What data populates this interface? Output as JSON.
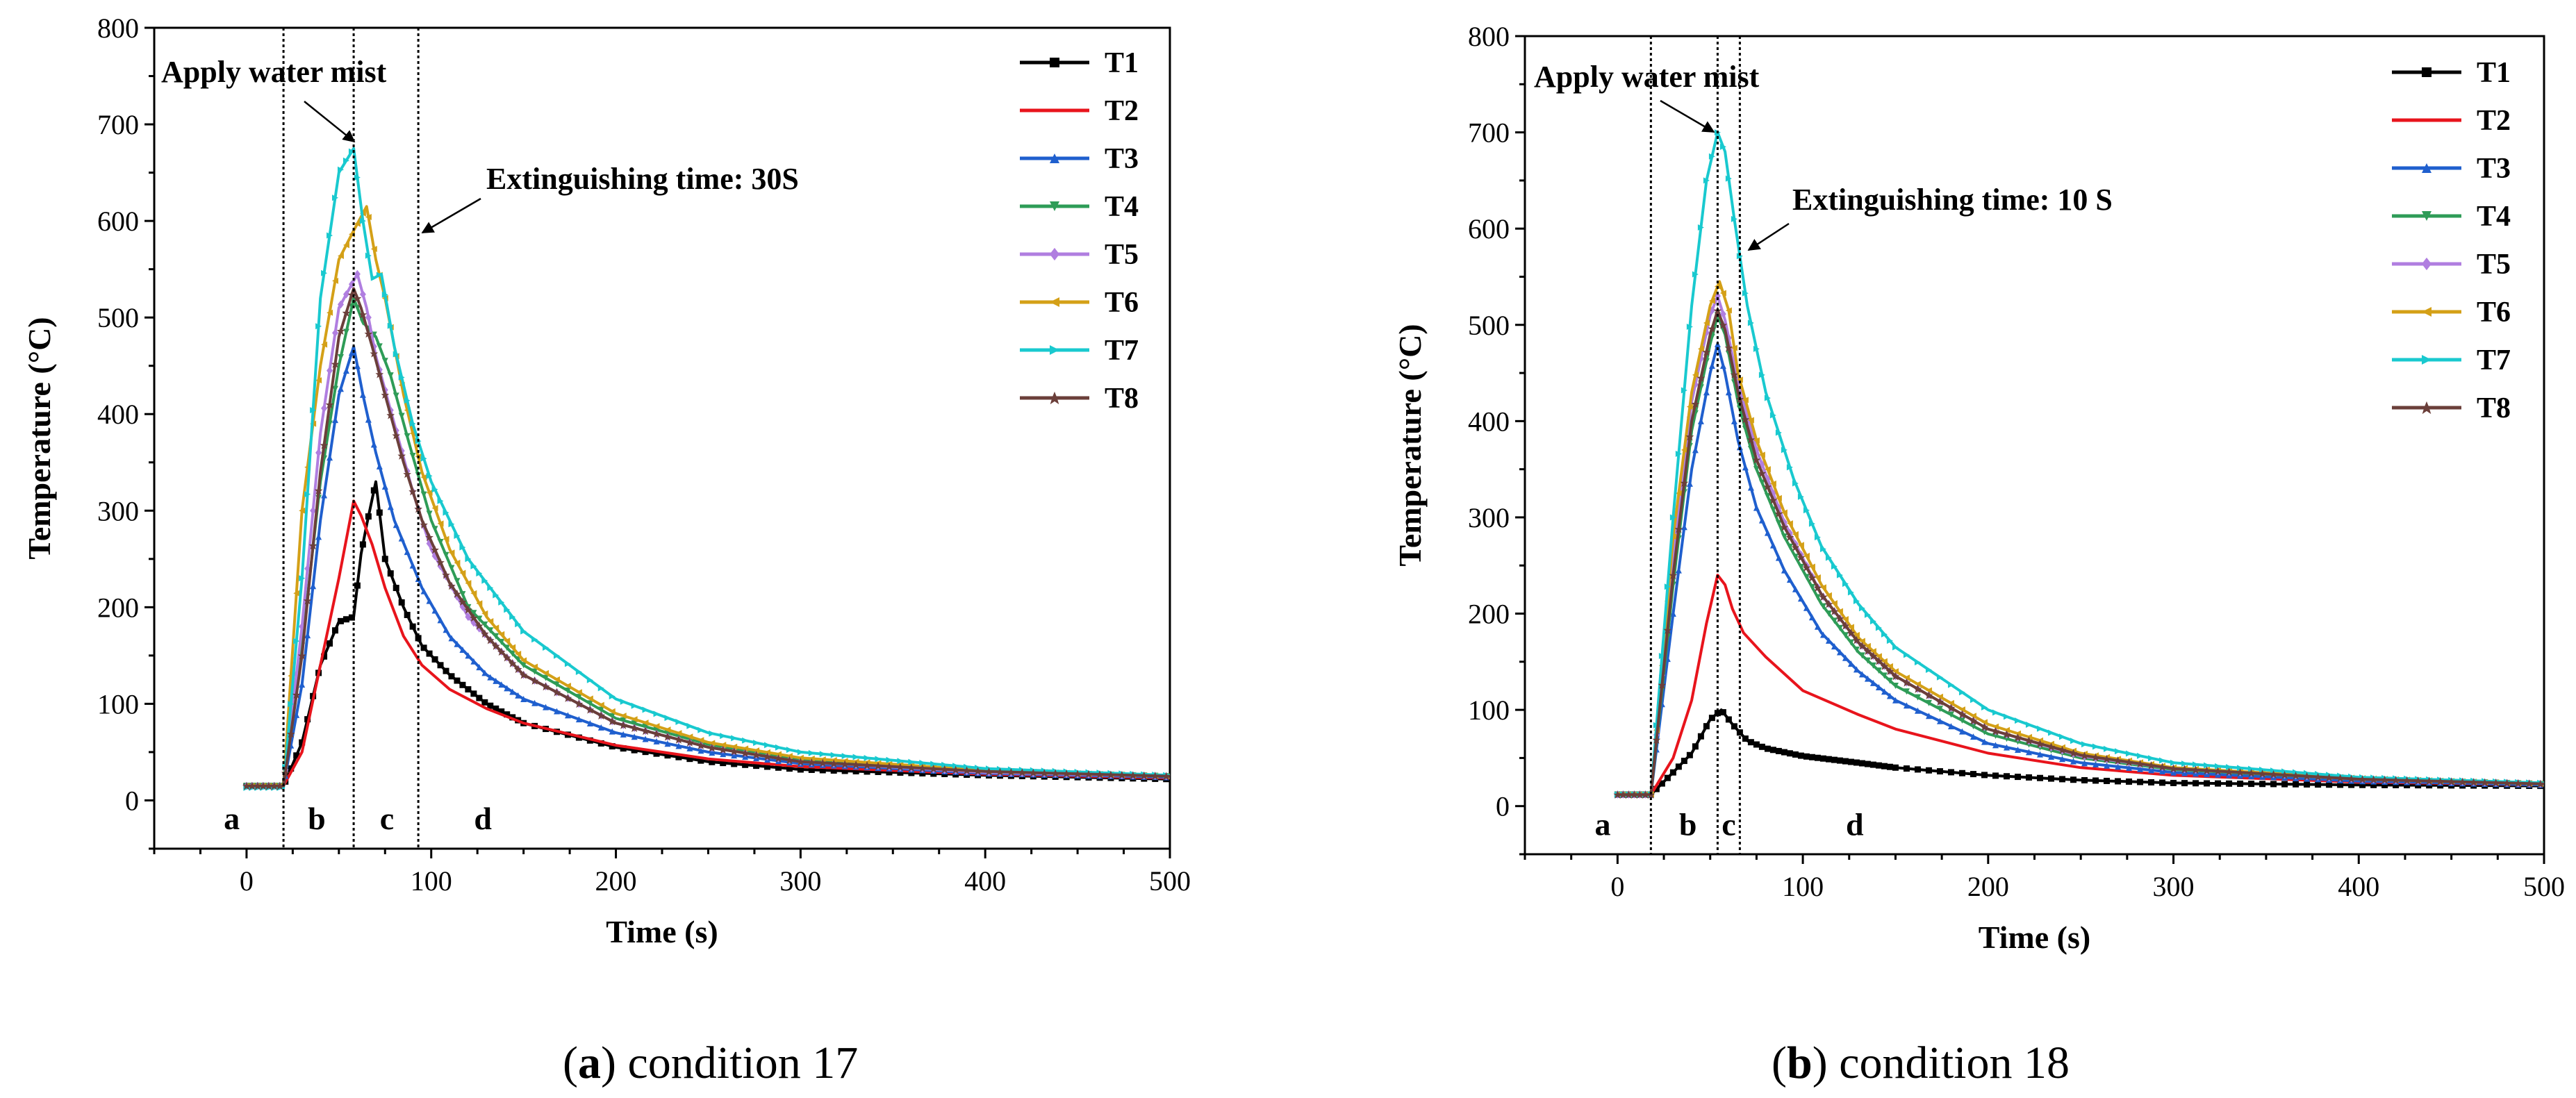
{
  "chart_data": [
    {
      "type": "line",
      "caption_letter": "a",
      "caption_rest": " condition 17",
      "xlabel": "Time (s)",
      "ylabel": "Temperature (°C)",
      "xlim": [
        -50,
        500
      ],
      "ylim": [
        -50,
        800
      ],
      "xticks": [
        0,
        100,
        200,
        300,
        400,
        500
      ],
      "yticks": [
        0,
        100,
        200,
        300,
        400,
        500,
        600,
        700,
        800
      ],
      "vlines": [
        20,
        58,
        93
      ],
      "region_labels": [
        {
          "text": "a",
          "x": -8
        },
        {
          "text": "b",
          "x": 38
        },
        {
          "text": "c",
          "x": 76
        },
        {
          "text": "d",
          "x": 128
        }
      ],
      "annotation_mist": "Apply water mist",
      "annotation_extinguish": "Extinguishing time: 30S",
      "series": [
        {
          "name": "T1",
          "color": "#000000",
          "marker": "square",
          "x": [
            0,
            20,
            30,
            40,
            50,
            58,
            62,
            65,
            70,
            75,
            85,
            95,
            110,
            130,
            150,
            200,
            250,
            300,
            400,
            500
          ],
          "y": [
            15,
            15,
            60,
            140,
            185,
            190,
            255,
            285,
            330,
            250,
            200,
            160,
            130,
            100,
            80,
            55,
            40,
            32,
            26,
            22
          ]
        },
        {
          "name": "T2",
          "color": "#e8141c",
          "marker": "circle",
          "x": [
            0,
            20,
            30,
            40,
            50,
            58,
            62,
            68,
            75,
            85,
            95,
            110,
            130,
            150,
            200,
            250,
            300,
            400,
            500
          ],
          "y": [
            15,
            15,
            50,
            140,
            230,
            310,
            295,
            265,
            220,
            170,
            140,
            115,
            95,
            80,
            57,
            43,
            35,
            27,
            23
          ]
        },
        {
          "name": "T3",
          "color": "#1f5fce",
          "marker": "triangle",
          "x": [
            0,
            20,
            30,
            40,
            50,
            58,
            63,
            70,
            80,
            95,
            110,
            130,
            150,
            200,
            250,
            300,
            400,
            500
          ],
          "y": [
            15,
            15,
            120,
            290,
            420,
            470,
            420,
            360,
            290,
            220,
            170,
            130,
            105,
            70,
            50,
            38,
            28,
            24
          ]
        },
        {
          "name": "T4",
          "color": "#2e9c57",
          "marker": "triangle-down",
          "x": [
            0,
            20,
            30,
            40,
            50,
            58,
            63,
            70,
            78,
            88,
            100,
            120,
            150,
            200,
            250,
            300,
            400,
            500
          ],
          "y": [
            15,
            15,
            160,
            330,
            450,
            520,
            495,
            480,
            440,
            370,
            290,
            200,
            140,
            85,
            58,
            42,
            30,
            25
          ]
        },
        {
          "name": "T5",
          "color": "#b07ee0",
          "marker": "diamond",
          "x": [
            0,
            20,
            30,
            40,
            50,
            60,
            65,
            70,
            80,
            90,
            100,
            120,
            150,
            200,
            250,
            300,
            400,
            500
          ],
          "y": [
            15,
            15,
            180,
            380,
            510,
            545,
            510,
            460,
            390,
            320,
            260,
            190,
            130,
            80,
            55,
            40,
            29,
            25
          ]
        },
        {
          "name": "T6",
          "color": "#d4a017",
          "marker": "triangle-left",
          "x": [
            0,
            20,
            30,
            40,
            50,
            58,
            65,
            70,
            75,
            85,
            95,
            110,
            130,
            150,
            200,
            250,
            300,
            400,
            500
          ],
          "y": [
            15,
            15,
            300,
            450,
            560,
            590,
            615,
            560,
            520,
            420,
            340,
            260,
            190,
            145,
            90,
            60,
            44,
            31,
            25
          ]
        },
        {
          "name": "T7",
          "color": "#19c9cf",
          "marker": "triangle-right",
          "x": [
            0,
            20,
            30,
            40,
            50,
            58,
            63,
            68,
            73,
            80,
            90,
            100,
            120,
            150,
            200,
            250,
            300,
            400,
            500
          ],
          "y": [
            13,
            13,
            230,
            520,
            650,
            675,
            600,
            540,
            545,
            470,
            390,
            330,
            250,
            175,
            105,
            70,
            50,
            33,
            26
          ]
        },
        {
          "name": "T8",
          "color": "#6b3f3a",
          "marker": "star",
          "x": [
            0,
            20,
            30,
            40,
            50,
            58,
            62,
            68,
            75,
            85,
            95,
            110,
            130,
            150,
            200,
            250,
            300,
            400,
            500
          ],
          "y": [
            15,
            15,
            150,
            340,
            480,
            530,
            510,
            470,
            420,
            350,
            290,
            225,
            170,
            130,
            80,
            55,
            40,
            30,
            25
          ]
        }
      ]
    },
    {
      "type": "line",
      "caption_letter": "b",
      "caption_rest": " condition 18",
      "xlabel": "Time (s)",
      "ylabel": "Temperature (°C)",
      "xlim": [
        -50,
        500
      ],
      "ylim": [
        -50,
        800
      ],
      "xticks": [
        0,
        100,
        200,
        300,
        400,
        500
      ],
      "yticks": [
        0,
        100,
        200,
        300,
        400,
        500,
        600,
        700,
        800
      ],
      "vlines": [
        18,
        54,
        66
      ],
      "region_labels": [
        {
          "text": "a",
          "x": -8
        },
        {
          "text": "b",
          "x": 38
        },
        {
          "text": "c",
          "x": 60
        },
        {
          "text": "d",
          "x": 128
        }
      ],
      "annotation_mist": "Apply water mist",
      "annotation_extinguish": "Extinguishing time: 10 S",
      "series": [
        {
          "name": "T1",
          "color": "#000000",
          "marker": "square",
          "x": [
            0,
            18,
            30,
            40,
            50,
            56,
            62,
            70,
            80,
            100,
            130,
            150,
            200,
            250,
            300,
            400,
            500
          ],
          "y": [
            12,
            12,
            35,
            55,
            90,
            100,
            85,
            68,
            60,
            52,
            45,
            40,
            32,
            27,
            24,
            22,
            21
          ]
        },
        {
          "name": "T2",
          "color": "#e8141c",
          "marker": "circle",
          "x": [
            0,
            18,
            30,
            40,
            48,
            54,
            58,
            62,
            68,
            80,
            100,
            130,
            150,
            200,
            250,
            300,
            400,
            500
          ],
          "y": [
            12,
            12,
            50,
            110,
            190,
            240,
            230,
            205,
            180,
            155,
            120,
            95,
            80,
            55,
            40,
            32,
            25,
            22
          ]
        },
        {
          "name": "T3",
          "color": "#1f5fce",
          "marker": "triangle",
          "x": [
            0,
            18,
            30,
            40,
            50,
            54,
            58,
            65,
            75,
            90,
            110,
            130,
            150,
            200,
            250,
            300,
            400,
            500
          ],
          "y": [
            12,
            12,
            200,
            350,
            450,
            480,
            450,
            380,
            310,
            245,
            180,
            140,
            110,
            65,
            45,
            35,
            26,
            22
          ]
        },
        {
          "name": "T4",
          "color": "#2e9c57",
          "marker": "triangle-down",
          "x": [
            0,
            18,
            30,
            40,
            50,
            54,
            58,
            65,
            75,
            90,
            110,
            130,
            150,
            200,
            250,
            300,
            400,
            500
          ],
          "y": [
            12,
            12,
            230,
            390,
            480,
            510,
            490,
            420,
            350,
            280,
            210,
            160,
            125,
            75,
            50,
            38,
            28,
            23
          ]
        },
        {
          "name": "T5",
          "color": "#b07ee0",
          "marker": "diamond",
          "x": [
            0,
            18,
            30,
            40,
            50,
            54,
            58,
            65,
            75,
            90,
            110,
            130,
            150,
            200,
            250,
            300,
            400,
            500
          ],
          "y": [
            12,
            12,
            260,
            420,
            510,
            530,
            505,
            440,
            370,
            295,
            220,
            170,
            135,
            80,
            52,
            39,
            28,
            23
          ]
        },
        {
          "name": "T6",
          "color": "#d4a017",
          "marker": "triangle-left",
          "x": [
            0,
            18,
            30,
            40,
            50,
            55,
            60,
            65,
            75,
            90,
            110,
            130,
            150,
            200,
            250,
            300,
            400,
            500
          ],
          "y": [
            12,
            12,
            280,
            430,
            520,
            545,
            515,
            450,
            380,
            305,
            230,
            175,
            140,
            85,
            55,
            40,
            29,
            23
          ]
        },
        {
          "name": "T7",
          "color": "#19c9cf",
          "marker": "triangle-right",
          "x": [
            0,
            18,
            30,
            40,
            48,
            54,
            58,
            63,
            70,
            80,
            95,
            110,
            130,
            150,
            200,
            250,
            300,
            400,
            500
          ],
          "y": [
            12,
            12,
            300,
            520,
            650,
            700,
            680,
            610,
            520,
            430,
            340,
            270,
            210,
            165,
            100,
            65,
            45,
            30,
            24
          ]
        },
        {
          "name": "T8",
          "color": "#6b3f3a",
          "marker": "star",
          "x": [
            0,
            18,
            30,
            40,
            50,
            54,
            58,
            65,
            75,
            90,
            110,
            130,
            150,
            200,
            250,
            300,
            400,
            500
          ],
          "y": [
            12,
            12,
            240,
            400,
            490,
            515,
            495,
            430,
            360,
            290,
            220,
            170,
            135,
            80,
            53,
            39,
            28,
            23
          ]
        }
      ]
    }
  ]
}
